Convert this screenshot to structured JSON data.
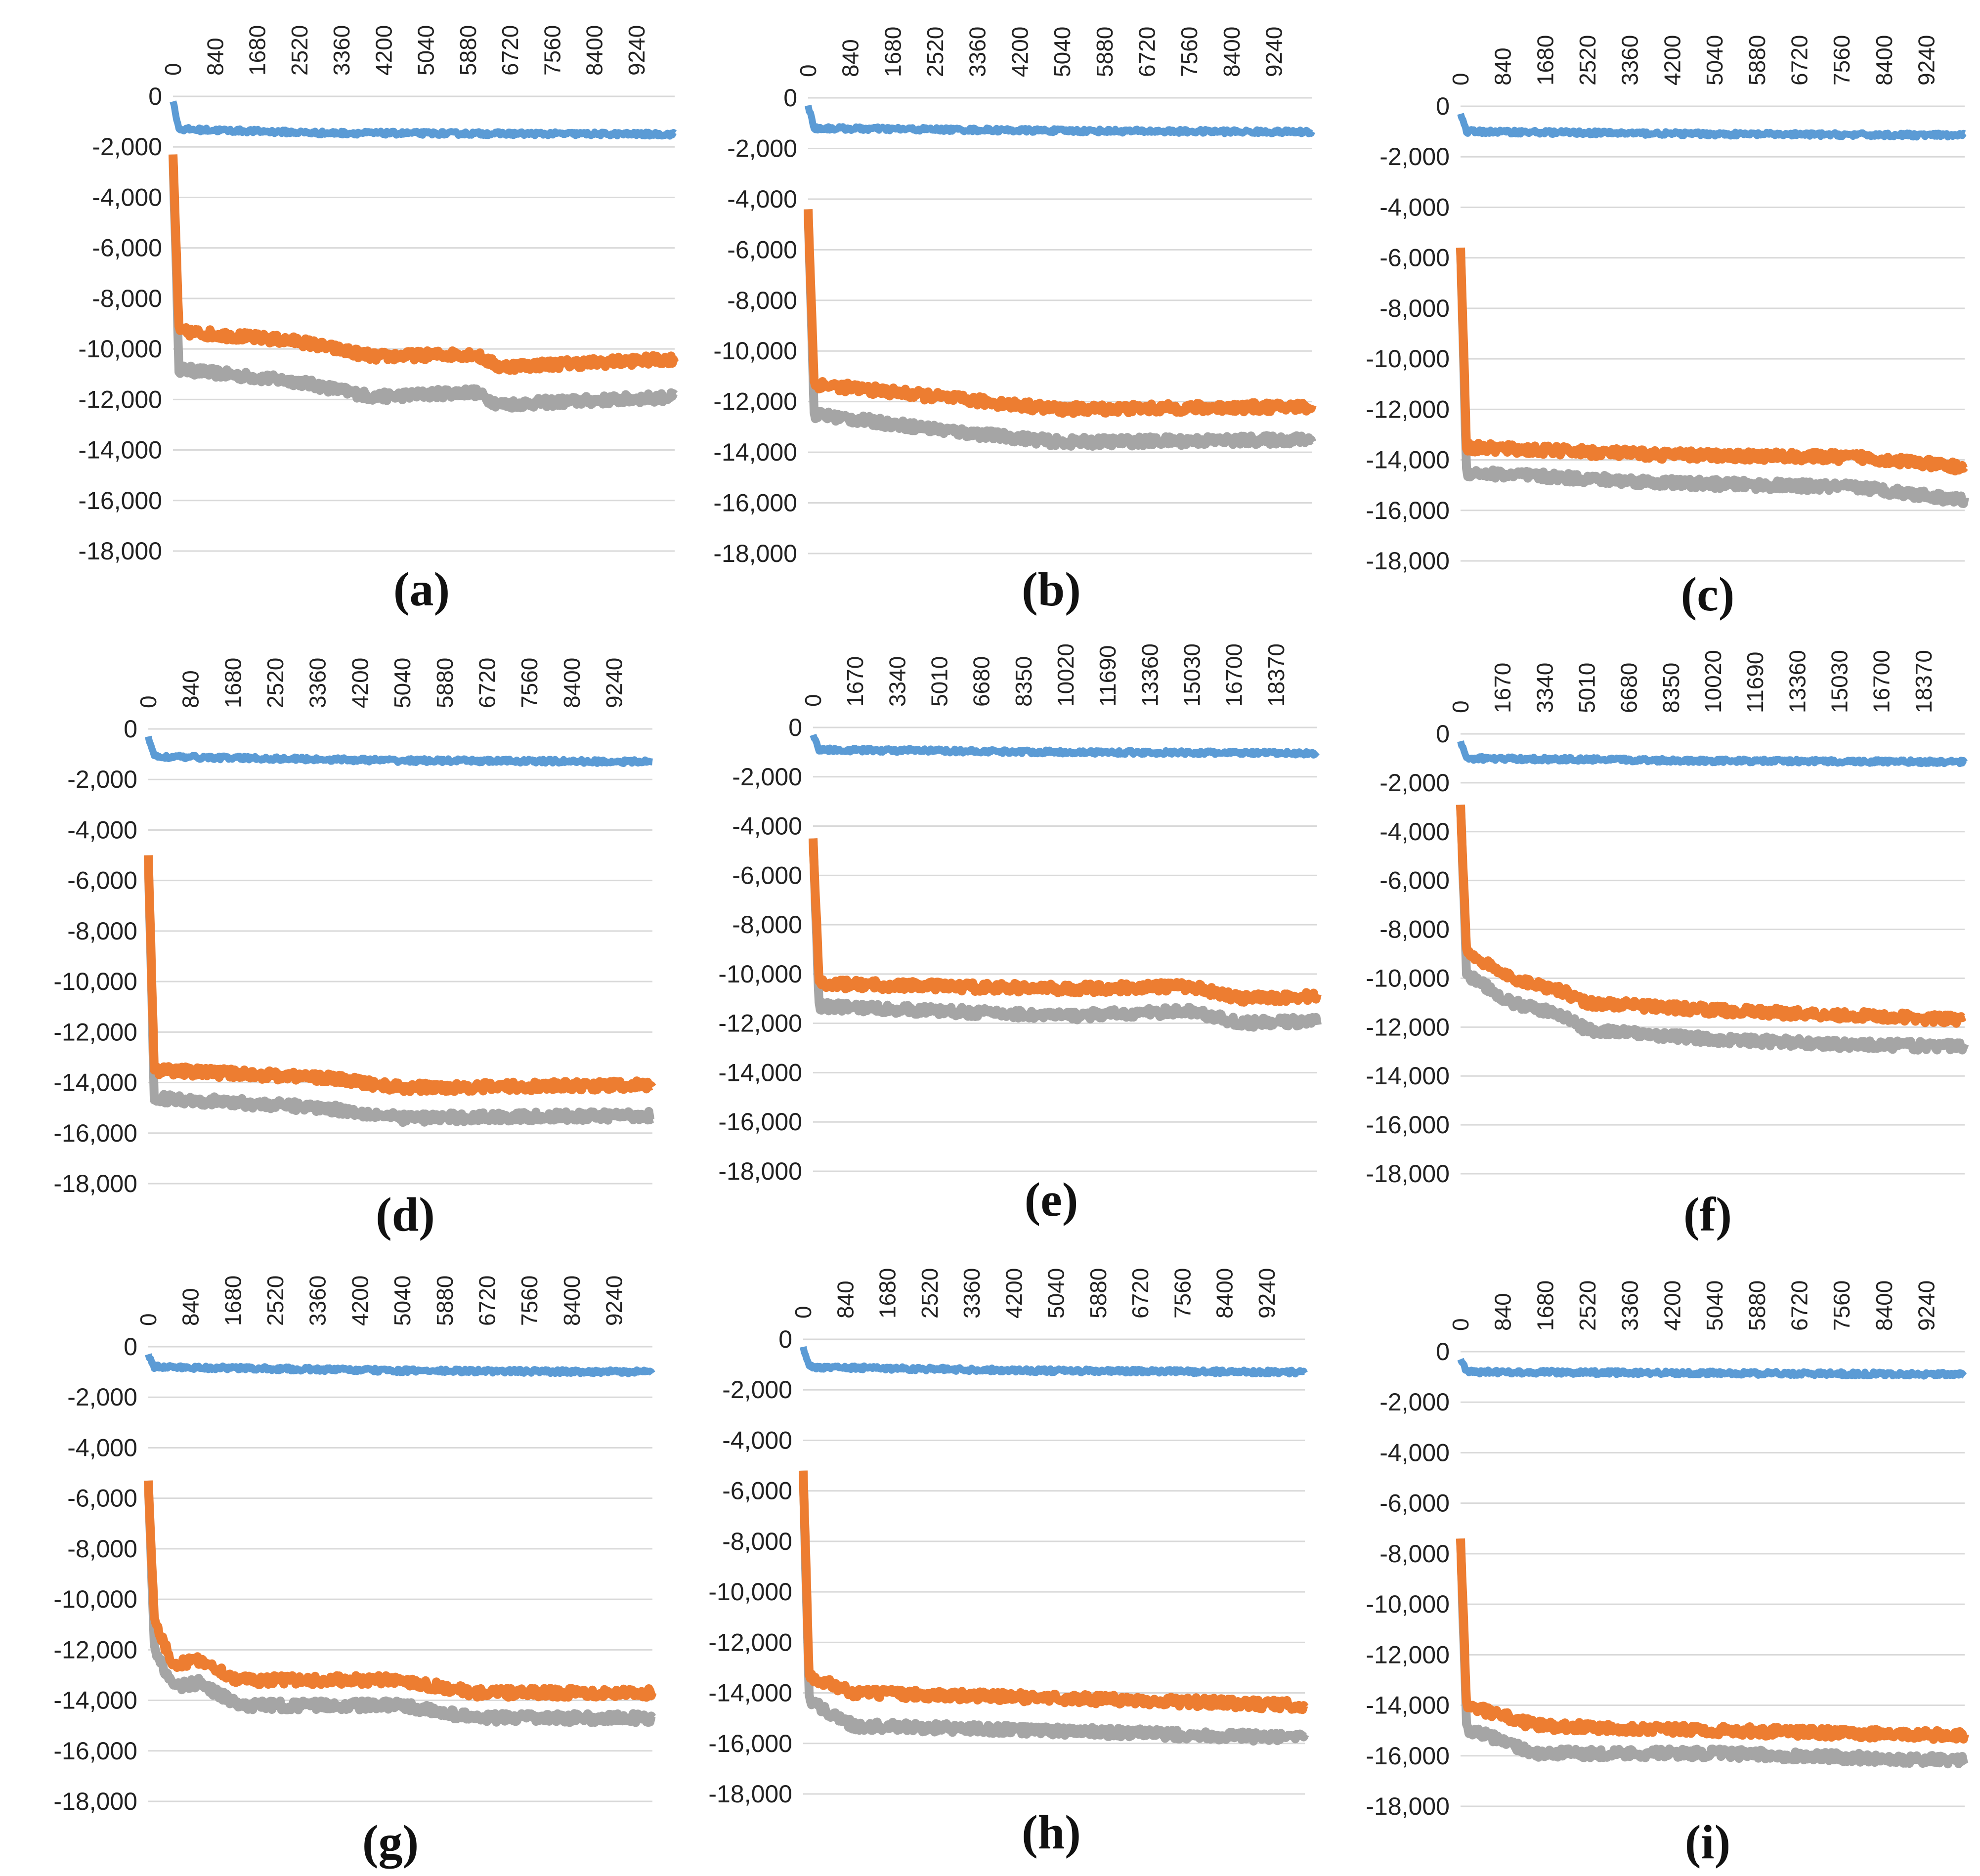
{
  "colors": {
    "series1": "#5b9bd5",
    "series2": "#ed7d31",
    "series3": "#a5a5a5",
    "grid": "#d9d9d9"
  },
  "chart_data": [
    {
      "panel": "(a)",
      "type": "line",
      "ylim": [
        -18000,
        0
      ],
      "yticks": [
        "0",
        "-2,000",
        "-4,000",
        "-6,000",
        "-8,000",
        "-10,000",
        "-12,000",
        "-14,000",
        "-16,000",
        "-18,000"
      ],
      "xmax": 10000,
      "xticks": [
        "0",
        "840",
        "1680",
        "2520",
        "3360",
        "4200",
        "5040",
        "5880",
        "6720",
        "7560",
        "8400",
        "9240"
      ],
      "grid": true,
      "legend": "none",
      "series": [
        {
          "name": "series-blue",
          "start": -200,
          "points": [
            [
              0.01,
              -1300
            ],
            [
              0.3,
              -1450
            ],
            [
              1,
              -1500
            ]
          ]
        },
        {
          "name": "series-orange",
          "start": -2300,
          "points": [
            [
              0.01,
              -9300
            ],
            [
              0.25,
              -9700
            ],
            [
              0.4,
              -10300
            ],
            [
              0.6,
              -10200
            ],
            [
              0.65,
              -10700
            ],
            [
              1,
              -10400
            ]
          ]
        },
        {
          "name": "series-gray",
          "start": -2300,
          "points": [
            [
              0.01,
              -10800
            ],
            [
              0.25,
              -11300
            ],
            [
              0.4,
              -11900
            ],
            [
              0.6,
              -11700
            ],
            [
              0.65,
              -12200
            ],
            [
              1,
              -11900
            ]
          ]
        }
      ]
    },
    {
      "panel": "(b)",
      "type": "line",
      "ylim": [
        -18000,
        0
      ],
      "yticks": [
        "0",
        "-2,000",
        "-4,000",
        "-6,000",
        "-8,000",
        "-10,000",
        "-12,000",
        "-14,000",
        "-16,000",
        "-18,000"
      ],
      "xmax": 10000,
      "xticks": [
        "0",
        "840",
        "1680",
        "2520",
        "3360",
        "4200",
        "5040",
        "5880",
        "6720",
        "7560",
        "8400",
        "9240"
      ],
      "grid": true,
      "legend": "none",
      "series": [
        {
          "name": "series-blue",
          "start": -300,
          "points": [
            [
              0.01,
              -1200
            ],
            [
              0.5,
              -1300
            ],
            [
              1,
              -1350
            ]
          ]
        },
        {
          "name": "series-orange",
          "start": -4400,
          "points": [
            [
              0.01,
              -11300
            ],
            [
              0.3,
              -11900
            ],
            [
              0.5,
              -12300
            ],
            [
              1,
              -12200
            ]
          ]
        },
        {
          "name": "series-gray",
          "start": -4400,
          "points": [
            [
              0.01,
              -12500
            ],
            [
              0.3,
              -13200
            ],
            [
              0.5,
              -13600
            ],
            [
              1,
              -13500
            ]
          ]
        }
      ]
    },
    {
      "panel": "(c)",
      "type": "line",
      "ylim": [
        -18000,
        0
      ],
      "yticks": [
        "0",
        "-2,000",
        "-4,000",
        "-6,000",
        "-8,000",
        "-10,000",
        "-12,000",
        "-14,000",
        "-16,000",
        "-18,000"
      ],
      "xmax": 10000,
      "xticks": [
        "0",
        "840",
        "1680",
        "2520",
        "3360",
        "4200",
        "5040",
        "5880",
        "6720",
        "7560",
        "8400",
        "9240"
      ],
      "grid": true,
      "legend": "none",
      "series": [
        {
          "name": "series-blue",
          "start": -300,
          "points": [
            [
              0.01,
              -1000
            ],
            [
              0.5,
              -1100
            ],
            [
              1,
              -1150
            ]
          ]
        },
        {
          "name": "series-orange",
          "start": -5600,
          "points": [
            [
              0.01,
              -13500
            ],
            [
              0.4,
              -13800
            ],
            [
              0.8,
              -13900
            ],
            [
              1,
              -14300
            ]
          ]
        },
        {
          "name": "series-gray",
          "start": -5600,
          "points": [
            [
              0.01,
              -14500
            ],
            [
              0.4,
              -14900
            ],
            [
              0.8,
              -15100
            ],
            [
              1,
              -15600
            ]
          ]
        }
      ]
    },
    {
      "panel": "(d)",
      "type": "line",
      "ylim": [
        -18000,
        0
      ],
      "yticks": [
        "0",
        "-2,000",
        "-4,000",
        "-6,000",
        "-8,000",
        "-10,000",
        "-12,000",
        "-14,000",
        "-16,000",
        "-18,000"
      ],
      "xmax": 10000,
      "xticks": [
        "0",
        "840",
        "1680",
        "2520",
        "3360",
        "4200",
        "5040",
        "5880",
        "6720",
        "7560",
        "8400",
        "9240"
      ],
      "grid": true,
      "legend": "none",
      "series": [
        {
          "name": "series-blue",
          "start": -300,
          "points": [
            [
              0.01,
              -1100
            ],
            [
              0.5,
              -1250
            ],
            [
              1,
              -1300
            ]
          ]
        },
        {
          "name": "series-orange",
          "start": -5000,
          "points": [
            [
              0.01,
              -13500
            ],
            [
              0.35,
              -13800
            ],
            [
              0.5,
              -14200
            ],
            [
              1,
              -14100
            ]
          ]
        },
        {
          "name": "series-gray",
          "start": -5000,
          "points": [
            [
              0.01,
              -14600
            ],
            [
              0.35,
              -15000
            ],
            [
              0.5,
              -15400
            ],
            [
              1,
              -15300
            ]
          ]
        }
      ]
    },
    {
      "panel": "(e)",
      "type": "line",
      "ylim": [
        -18000,
        0
      ],
      "yticks": [
        "0",
        "-2,000",
        "-4,000",
        "-6,000",
        "-8,000",
        "-10,000",
        "-12,000",
        "-14,000",
        "-16,000",
        "-18,000"
      ],
      "xmax": 20000,
      "xticks": [
        "0",
        "1670",
        "3340",
        "5010",
        "6680",
        "8350",
        "10020",
        "11690",
        "13360",
        "15030",
        "16700",
        "18370"
      ],
      "grid": true,
      "legend": "none",
      "series": [
        {
          "name": "series-blue",
          "start": -300,
          "points": [
            [
              0.01,
              -900
            ],
            [
              0.5,
              -1000
            ],
            [
              1,
              -1050
            ]
          ]
        },
        {
          "name": "series-orange",
          "start": -4500,
          "points": [
            [
              0.01,
              -10400
            ],
            [
              0.5,
              -10600
            ],
            [
              0.75,
              -10500
            ],
            [
              0.85,
              -11000
            ],
            [
              1,
              -10900
            ]
          ]
        },
        {
          "name": "series-gray",
          "start": -4500,
          "points": [
            [
              0.01,
              -11300
            ],
            [
              0.5,
              -11700
            ],
            [
              0.75,
              -11500
            ],
            [
              0.85,
              -12000
            ],
            [
              1,
              -11900
            ]
          ]
        }
      ]
    },
    {
      "panel": "(f)",
      "type": "line",
      "ylim": [
        -18000,
        0
      ],
      "yticks": [
        "0",
        "-2,000",
        "-4,000",
        "-6,000",
        "-8,000",
        "-10,000",
        "-12,000",
        "-14,000",
        "-16,000",
        "-18,000"
      ],
      "xmax": 20000,
      "xticks": [
        "0",
        "1670",
        "3340",
        "5010",
        "6680",
        "8350",
        "10020",
        "11690",
        "13360",
        "15030",
        "16700",
        "18370"
      ],
      "grid": true,
      "legend": "none",
      "series": [
        {
          "name": "series-blue",
          "start": -300,
          "points": [
            [
              0.01,
              -1000
            ],
            [
              0.5,
              -1100
            ],
            [
              1,
              -1150
            ]
          ]
        },
        {
          "name": "series-orange",
          "start": -2900,
          "points": [
            [
              0.01,
              -8900
            ],
            [
              0.1,
              -10000
            ],
            [
              0.2,
              -10500
            ],
            [
              0.25,
              -11000
            ],
            [
              0.5,
              -11300
            ],
            [
              0.75,
              -11500
            ],
            [
              1,
              -11700
            ]
          ]
        },
        {
          "name": "series-gray",
          "start": -2900,
          "points": [
            [
              0.01,
              -9800
            ],
            [
              0.1,
              -11000
            ],
            [
              0.2,
              -11500
            ],
            [
              0.25,
              -12100
            ],
            [
              0.5,
              -12500
            ],
            [
              0.75,
              -12700
            ],
            [
              1,
              -12800
            ]
          ]
        }
      ]
    },
    {
      "panel": "(g)",
      "type": "line",
      "ylim": [
        -18000,
        0
      ],
      "yticks": [
        "0",
        "-2,000",
        "-4,000",
        "-6,000",
        "-8,000",
        "-10,000",
        "-12,000",
        "-14,000",
        "-16,000",
        "-18,000"
      ],
      "xmax": 10000,
      "xticks": [
        "0",
        "840",
        "1680",
        "2520",
        "3360",
        "4200",
        "5040",
        "5880",
        "6720",
        "7560",
        "8400",
        "9240"
      ],
      "grid": true,
      "legend": "none",
      "series": [
        {
          "name": "series-blue",
          "start": -300,
          "points": [
            [
              0.01,
              -800
            ],
            [
              0.5,
              -950
            ],
            [
              1,
              -1000
            ]
          ]
        },
        {
          "name": "series-orange",
          "start": -5300,
          "points": [
            [
              0.01,
              -10800
            ],
            [
              0.05,
              -12600
            ],
            [
              0.1,
              -12400
            ],
            [
              0.18,
              -13200
            ],
            [
              0.5,
              -13200
            ],
            [
              0.65,
              -13700
            ],
            [
              1,
              -13700
            ]
          ]
        },
        {
          "name": "series-gray",
          "start": -5300,
          "points": [
            [
              0.01,
              -11900
            ],
            [
              0.05,
              -13500
            ],
            [
              0.1,
              -13300
            ],
            [
              0.18,
              -14200
            ],
            [
              0.5,
              -14200
            ],
            [
              0.65,
              -14700
            ],
            [
              1,
              -14700
            ]
          ]
        }
      ]
    },
    {
      "panel": "(h)",
      "type": "line",
      "ylim": [
        -18000,
        0
      ],
      "yticks": [
        "0",
        "-2,000",
        "-4,000",
        "-6,000",
        "-8,000",
        "-10,000",
        "-12,000",
        "-14,000",
        "-16,000",
        "-18,000"
      ],
      "xmax": 10000,
      "xticks": [
        "0",
        "840",
        "1680",
        "2520",
        "3360",
        "4200",
        "5040",
        "5880",
        "6720",
        "7560",
        "8400",
        "9240"
      ],
      "grid": true,
      "legend": "none",
      "series": [
        {
          "name": "series-blue",
          "start": -300,
          "points": [
            [
              0.01,
              -1100
            ],
            [
              0.5,
              -1250
            ],
            [
              1,
              -1300
            ]
          ]
        },
        {
          "name": "series-orange",
          "start": -5200,
          "points": [
            [
              0.01,
              -13300
            ],
            [
              0.1,
              -14000
            ],
            [
              0.5,
              -14200
            ],
            [
              1,
              -14500
            ]
          ]
        },
        {
          "name": "series-gray",
          "start": -5200,
          "points": [
            [
              0.01,
              -14300
            ],
            [
              0.1,
              -15300
            ],
            [
              0.5,
              -15500
            ],
            [
              1,
              -15800
            ]
          ]
        }
      ]
    },
    {
      "panel": "(i)",
      "type": "line",
      "ylim": [
        -18000,
        0
      ],
      "yticks": [
        "0",
        "-2,000",
        "-4,000",
        "-6,000",
        "-8,000",
        "-10,000",
        "-12,000",
        "-14,000",
        "-16,000",
        "-18,000"
      ],
      "xmax": 10000,
      "xticks": [
        "0",
        "840",
        "1680",
        "2520",
        "3360",
        "4200",
        "5040",
        "5880",
        "6720",
        "7560",
        "8400",
        "9240"
      ],
      "grid": true,
      "legend": "none",
      "series": [
        {
          "name": "series-blue",
          "start": -300,
          "points": [
            [
              0.01,
              -800
            ],
            [
              0.5,
              -850
            ],
            [
              1,
              -900
            ]
          ]
        },
        {
          "name": "series-orange",
          "start": -7400,
          "points": [
            [
              0.01,
              -14000
            ],
            [
              0.15,
              -14800
            ],
            [
              0.5,
              -15000
            ],
            [
              1,
              -15200
            ]
          ]
        },
        {
          "name": "series-gray",
          "start": -7400,
          "points": [
            [
              0.01,
              -14900
            ],
            [
              0.15,
              -15900
            ],
            [
              0.5,
              -15900
            ],
            [
              1,
              -16200
            ]
          ]
        }
      ]
    }
  ]
}
